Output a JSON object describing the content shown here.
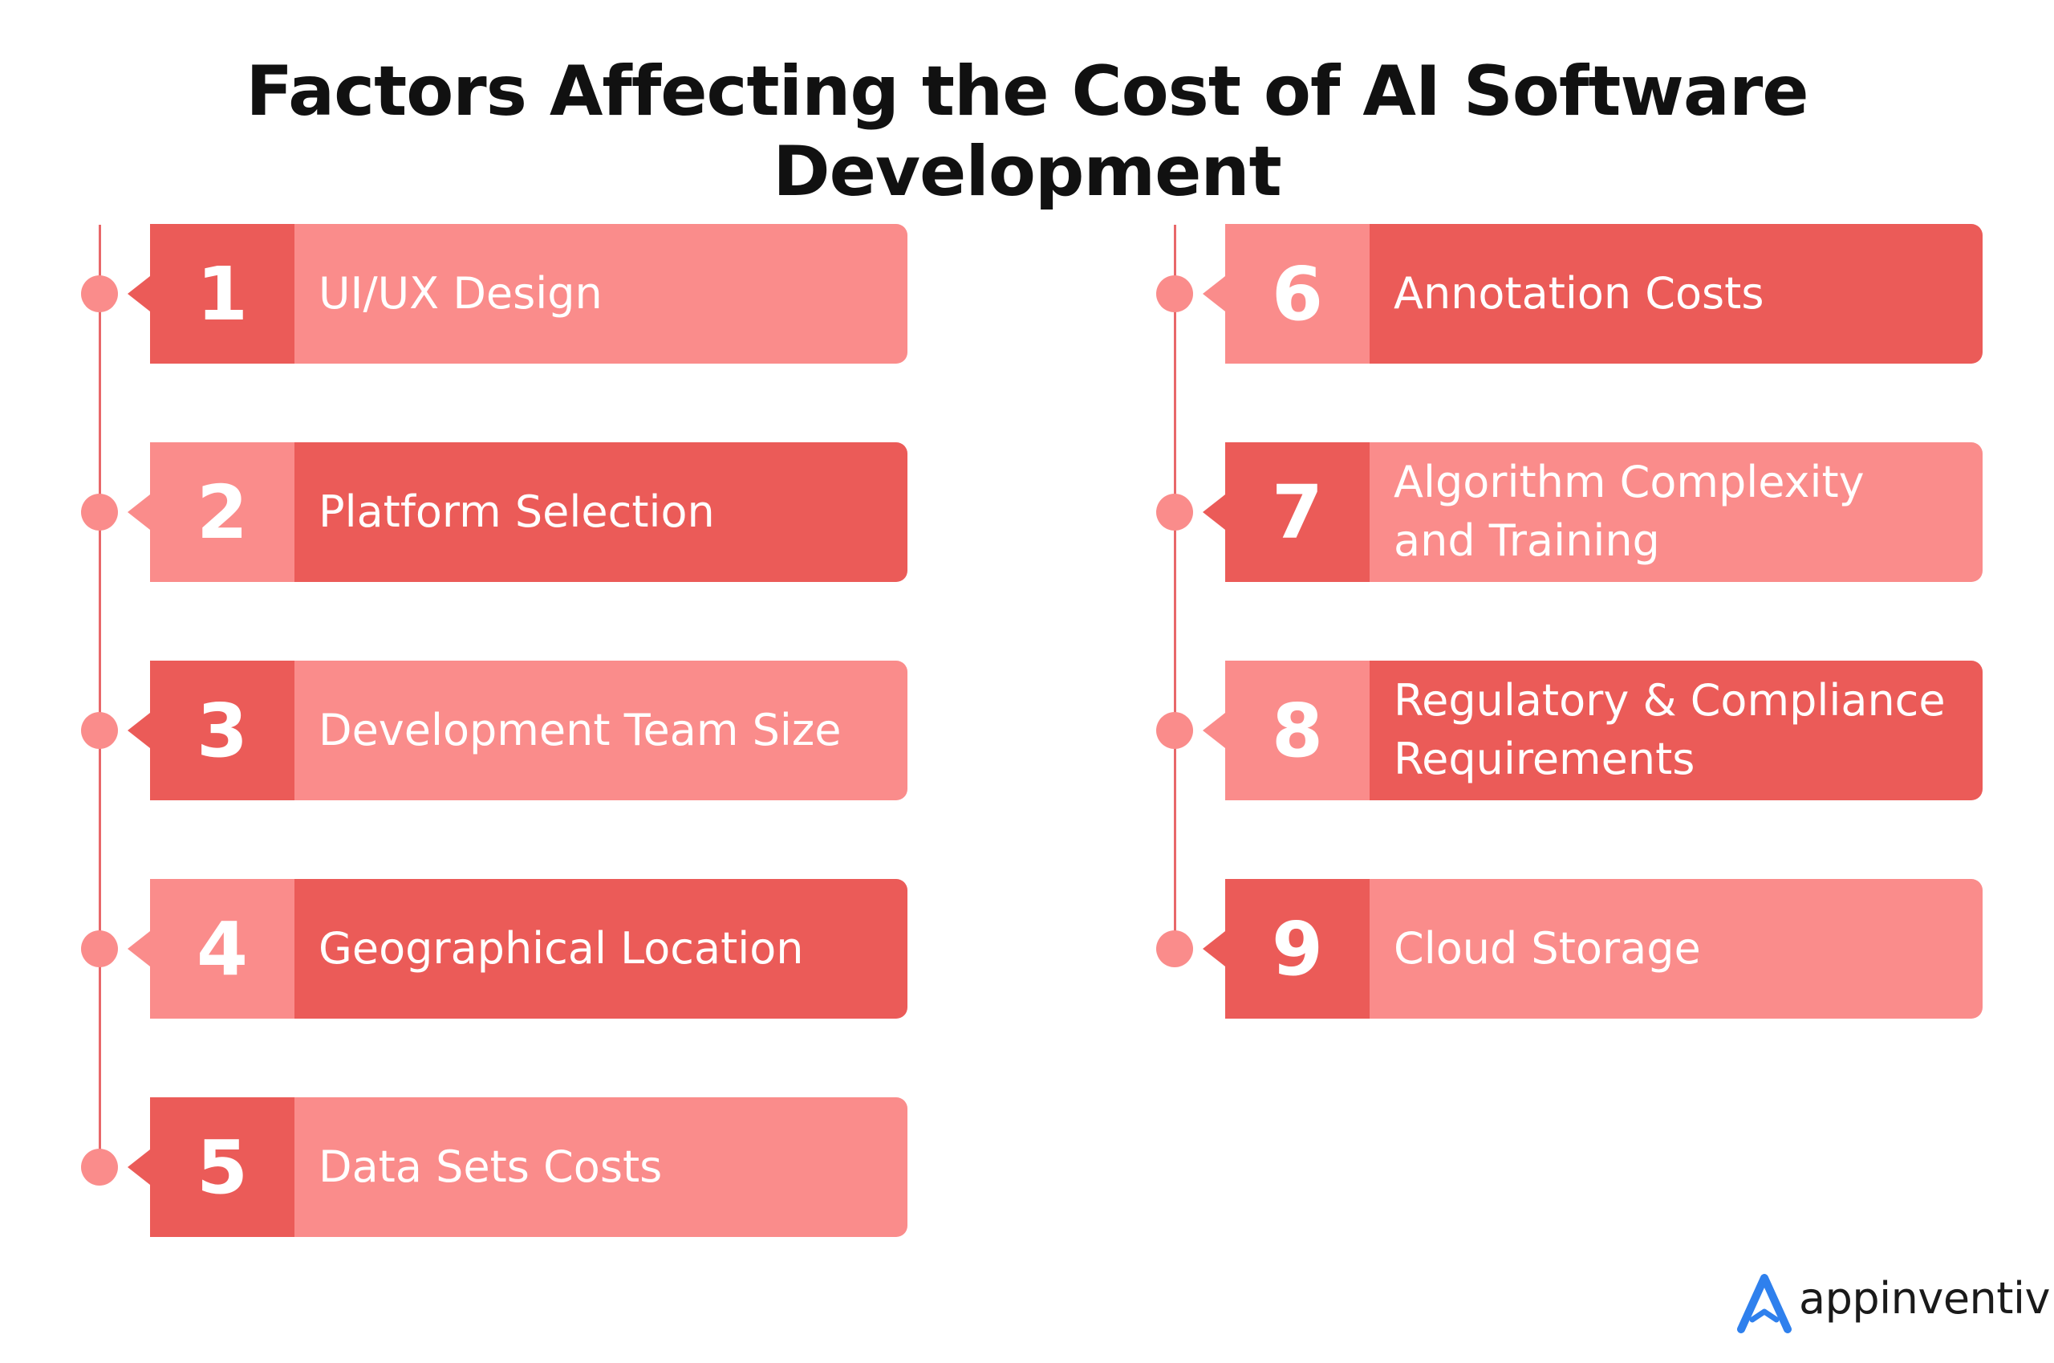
{
  "title": "Factors Affecting the Cost of AI Software Development",
  "colors": {
    "dark": "#eb5b58",
    "light": "#fa8c8b",
    "logo_blue": "#2f80ed",
    "title": "#111111"
  },
  "factors": [
    {
      "number": "1",
      "label": "UI/UX Design"
    },
    {
      "number": "2",
      "label": "Platform Selection"
    },
    {
      "number": "3",
      "label": "Development Team Size"
    },
    {
      "number": "4",
      "label": "Geographical Location"
    },
    {
      "number": "5",
      "label": "Data Sets Costs"
    },
    {
      "number": "6",
      "label": "Annotation Costs"
    },
    {
      "number": "7",
      "label": "Algorithm Complexity and Training"
    },
    {
      "number": "8",
      "label": "Regulatory & Compliance Requirements"
    },
    {
      "number": "9",
      "label": "Cloud Storage"
    }
  ],
  "brand": {
    "name": "appinventiv",
    "icon": "appinventiv-logo-icon"
  }
}
